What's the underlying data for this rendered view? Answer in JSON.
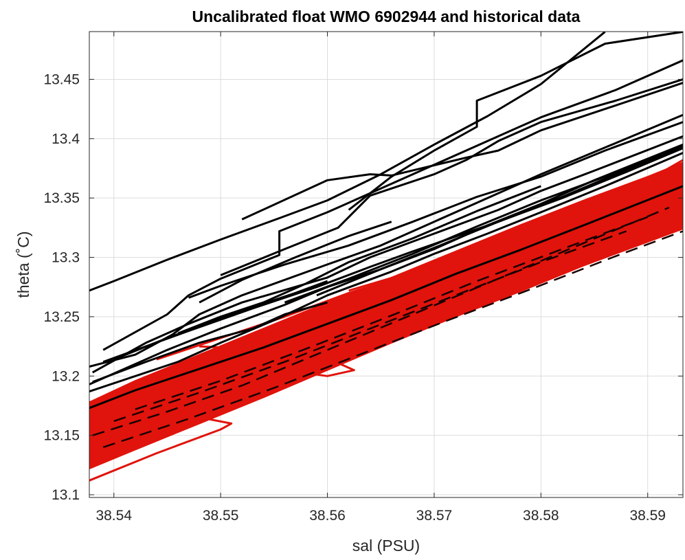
{
  "chart_data": {
    "type": "line",
    "title": "Uncalibrated float WMO 6902944 and historical data",
    "xlabel": "sal (PSU)",
    "ylabel": "theta (˚C)",
    "xlim": [
      38.5377,
      38.5933
    ],
    "ylim": [
      13.0977,
      13.4902
    ],
    "grid": true,
    "x_ticks": [
      38.54,
      38.55,
      38.56,
      38.57,
      38.58,
      38.59
    ],
    "x_tick_labels": [
      "38.54",
      "38.55",
      "38.56",
      "38.57",
      "38.58",
      "38.59"
    ],
    "y_ticks": [
      13.1,
      13.15,
      13.2,
      13.25,
      13.3,
      13.35,
      13.4,
      13.45
    ],
    "y_tick_labels": [
      "13.1",
      "13.15",
      "13.2",
      "13.25",
      "13.3",
      "13.35",
      "13.4",
      "13.45"
    ],
    "series_colors": {
      "historical": "#000000",
      "float": "#e0140c"
    },
    "historical_profiles": [
      {
        "x": [
          38.5377,
          38.54,
          38.545,
          38.55,
          38.5555,
          38.56,
          38.565,
          38.57,
          38.575,
          38.58,
          38.586
        ],
        "y": [
          13.272,
          13.28,
          13.298,
          13.315,
          13.333,
          13.348,
          13.37,
          13.395,
          13.419,
          13.446,
          13.49
        ]
      },
      {
        "x": [
          38.539,
          38.545,
          38.547,
          38.55,
          38.5555,
          38.5555,
          38.56,
          38.565,
          38.57,
          38.575,
          38.58,
          38.587,
          38.5933
        ],
        "y": [
          13.222,
          13.252,
          13.268,
          13.282,
          13.302,
          13.322,
          13.338,
          13.358,
          13.378,
          13.398,
          13.418,
          13.441,
          13.466
        ]
      },
      {
        "x": [
          38.5377,
          38.542,
          38.5455,
          38.548,
          38.552,
          38.56,
          38.565,
          38.57,
          38.575,
          38.58,
          38.588,
          38.5933
        ],
        "y": [
          13.208,
          13.218,
          13.235,
          13.252,
          13.268,
          13.294,
          13.31,
          13.33,
          13.35,
          13.37,
          13.4,
          13.42
        ]
      },
      {
        "x": [
          38.5377,
          38.545,
          38.55,
          38.556,
          38.56,
          38.565,
          38.57,
          38.575,
          38.58,
          38.585,
          38.5933
        ],
        "y": [
          13.193,
          13.222,
          13.24,
          13.26,
          13.275,
          13.29,
          13.307,
          13.327,
          13.345,
          13.365,
          13.395
        ]
      },
      {
        "x": [
          38.538,
          38.543,
          38.547,
          38.552,
          38.56,
          38.564,
          38.57,
          38.576,
          38.58,
          38.585,
          38.5933
        ],
        "y": [
          13.203,
          13.228,
          13.244,
          13.262,
          13.283,
          13.3,
          13.32,
          13.34,
          13.356,
          13.373,
          13.402
        ]
      },
      {
        "x": [
          38.5377,
          38.546,
          38.55,
          38.555,
          38.56,
          38.566,
          38.57,
          38.575,
          38.58,
          38.586,
          38.5933
        ],
        "y": [
          13.187,
          13.212,
          13.228,
          13.247,
          13.268,
          13.288,
          13.303,
          13.32,
          13.338,
          13.36,
          13.388
        ]
      },
      {
        "x": [
          38.539,
          38.547,
          38.553,
          38.559,
          38.564,
          38.568,
          38.576,
          38.582,
          38.587,
          38.5933
        ],
        "y": [
          13.212,
          13.238,
          13.257,
          13.275,
          13.292,
          13.305,
          13.33,
          13.351,
          13.37,
          13.394
        ]
      },
      {
        "x": [
          38.547,
          38.55,
          38.556,
          38.562,
          38.568,
          38.574,
          38.58,
          38.586,
          38.5933
        ],
        "y": [
          13.266,
          13.276,
          13.294,
          13.31,
          13.33,
          13.351,
          13.368,
          13.39,
          13.414
        ]
      },
      {
        "x": [
          38.55,
          38.556,
          38.561,
          38.564,
          38.57,
          38.573,
          38.576,
          38.58,
          38.587,
          38.5933
        ],
        "y": [
          13.285,
          13.307,
          13.325,
          13.352,
          13.37,
          13.382,
          13.398,
          13.414,
          13.432,
          13.45
        ]
      },
      {
        "x": [
          38.552,
          38.56,
          38.564,
          38.566,
          38.573,
          38.576,
          38.58,
          38.586,
          38.5933
        ],
        "y": [
          13.332,
          13.365,
          13.37,
          13.369,
          13.384,
          13.39,
          13.407,
          13.425,
          13.447
        ]
      },
      {
        "x": [
          38.562,
          38.566,
          38.57,
          38.574,
          38.574,
          38.58,
          38.586,
          38.5933
        ],
        "y": [
          13.34,
          13.368,
          13.39,
          13.41,
          13.432,
          13.453,
          13.48,
          13.49
        ]
      },
      {
        "x": [
          38.548,
          38.552,
          38.557,
          38.562,
          38.566
        ],
        "y": [
          13.262,
          13.281,
          13.3,
          13.318,
          13.33
        ]
      },
      {
        "x": [
          38.54,
          38.545,
          38.552,
          38.557,
          38.56
        ],
        "y": [
          13.214,
          13.232,
          13.255,
          13.27,
          13.28
        ]
      },
      {
        "x": [
          38.5377,
          38.542,
          38.548,
          38.554,
          38.56,
          38.566,
          38.572,
          38.578,
          38.584,
          38.5933
        ],
        "y": [
          13.173,
          13.188,
          13.206,
          13.224,
          13.244,
          13.264,
          13.286,
          13.306,
          13.327,
          13.36
        ]
      },
      {
        "x": [
          38.556,
          38.562,
          38.568,
          38.574,
          38.58,
          38.586,
          38.5933
        ],
        "y": [
          13.262,
          13.282,
          13.303,
          13.326,
          13.348,
          13.368,
          13.392
        ]
      },
      {
        "x": [
          38.559,
          38.565,
          38.57,
          38.576,
          38.582,
          38.588,
          38.5933
        ],
        "y": [
          13.268,
          13.29,
          13.308,
          13.33,
          13.35,
          13.372,
          13.392
        ]
      },
      {
        "x": [
          38.546,
          38.55,
          38.554,
          38.558,
          38.562,
          38.568,
          38.574,
          38.58
        ],
        "y": [
          13.236,
          13.25,
          13.262,
          13.278,
          13.296,
          13.316,
          13.339,
          13.36
        ]
      },
      {
        "x": [
          38.538,
          38.543,
          38.548,
          38.553,
          38.556,
          38.56
        ],
        "y": [
          13.195,
          13.212,
          13.228,
          13.24,
          13.252,
          13.262
        ]
      }
    ],
    "float_band": {
      "upper": {
        "x": [
          38.5377,
          38.542,
          38.548,
          38.554,
          38.56,
          38.566,
          38.572,
          38.578,
          38.584,
          38.59,
          38.5933
        ],
        "y": [
          13.178,
          13.196,
          13.218,
          13.24,
          13.262,
          13.283,
          13.305,
          13.327,
          13.348,
          13.368,
          13.38
        ]
      },
      "lower": {
        "x": [
          38.5377,
          38.542,
          38.548,
          38.554,
          38.56,
          38.566,
          38.572,
          38.578,
          38.584,
          38.59,
          38.5933
        ],
        "y": [
          13.122,
          13.138,
          13.16,
          13.182,
          13.205,
          13.228,
          13.25,
          13.271,
          13.293,
          13.313,
          13.324
        ]
      }
    },
    "float_profiles": [
      {
        "x": [
          38.5377,
          38.547,
          38.551,
          38.55,
          38.544,
          38.5377
        ],
        "y": [
          13.16,
          13.167,
          13.16,
          13.155,
          13.135,
          13.112
        ]
      },
      {
        "x": [
          38.548,
          38.555,
          38.56,
          38.5625,
          38.56,
          38.556
        ],
        "y": [
          13.225,
          13.222,
          13.215,
          13.205,
          13.2,
          13.205
        ]
      },
      {
        "x": [
          38.544,
          38.55,
          38.556,
          38.562,
          38.568
        ],
        "y": [
          13.214,
          13.232,
          13.25,
          13.27,
          13.287
        ]
      },
      {
        "x": [
          38.562,
          38.568,
          38.574,
          38.58,
          38.585,
          38.59,
          38.5933
        ],
        "y": [
          13.272,
          13.288,
          13.31,
          13.328,
          13.345,
          13.365,
          13.382
        ]
      },
      {
        "x": [
          38.5377,
          38.543,
          38.547,
          38.552
        ],
        "y": [
          13.178,
          13.186,
          13.2,
          13.215
        ]
      }
    ],
    "float_dash_traces": [
      {
        "x": [
          38.538,
          38.545,
          38.552,
          38.56,
          38.568,
          38.576,
          38.584,
          38.592
        ],
        "y": [
          13.15,
          13.17,
          13.192,
          13.222,
          13.252,
          13.282,
          13.312,
          13.342
        ]
      },
      {
        "x": [
          38.54,
          38.548,
          38.556,
          38.564,
          38.572,
          38.58,
          38.588
        ],
        "y": [
          13.162,
          13.186,
          13.212,
          13.24,
          13.268,
          13.296,
          13.322
        ]
      },
      {
        "x": [
          38.539,
          38.547,
          38.555,
          38.563,
          38.571,
          38.579,
          38.587,
          38.5933
        ],
        "y": [
          13.14,
          13.164,
          13.19,
          13.218,
          13.246,
          13.273,
          13.301,
          13.322
        ]
      },
      {
        "x": [
          38.542,
          38.55,
          38.558,
          38.566,
          38.574,
          38.582,
          38.59
        ],
        "y": [
          13.172,
          13.196,
          13.223,
          13.251,
          13.28,
          13.307,
          13.334
        ]
      }
    ]
  }
}
